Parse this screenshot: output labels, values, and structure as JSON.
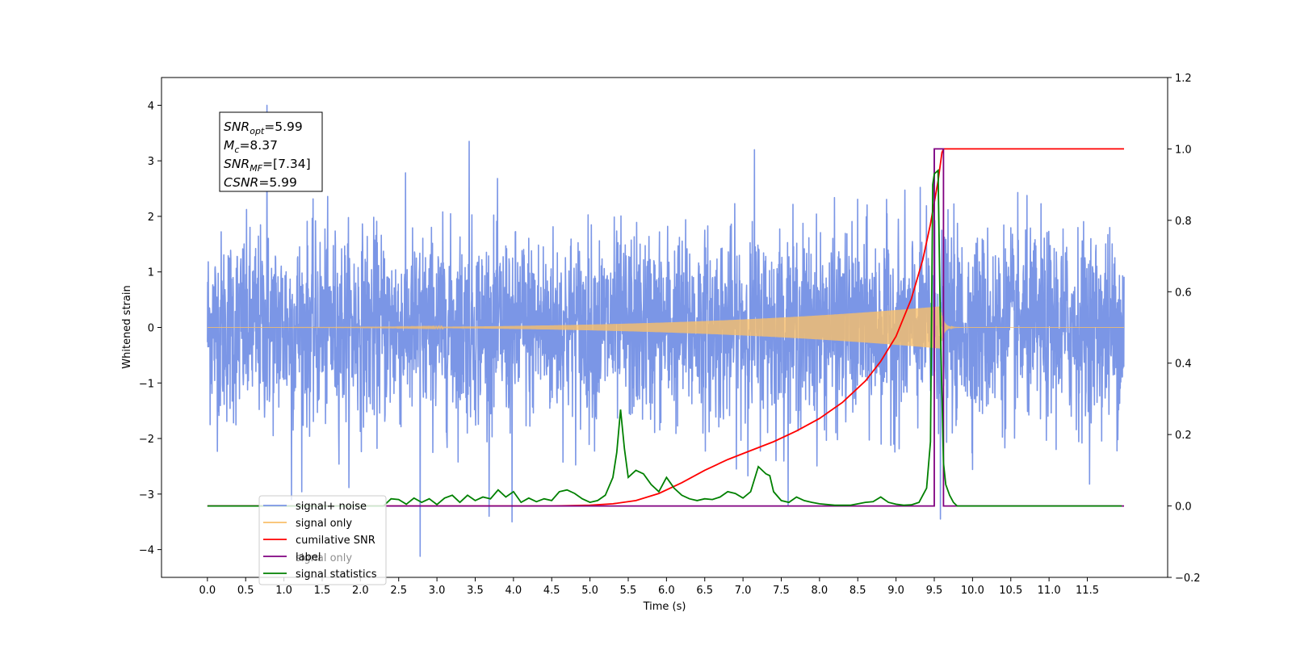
{
  "chart_data": {
    "type": "line",
    "xlabel": "Time (s)",
    "ylabel": "Whitened strain",
    "xlim": [
      -0.6,
      12.55
    ],
    "ylim": [
      -4.5,
      4.5
    ],
    "y2lim": [
      -0.2,
      1.2
    ],
    "x_ticks": [
      "0.0",
      "0.5",
      "1.0",
      "1.5",
      "2.0",
      "2.5",
      "3.0",
      "3.5",
      "4.0",
      "4.5",
      "5.0",
      "5.5",
      "6.0",
      "6.5",
      "7.0",
      "7.5",
      "8.0",
      "8.5",
      "9.0",
      "9.5",
      "10.0",
      "10.5",
      "11.0",
      "11.5"
    ],
    "y_ticks": [
      "4",
      "3",
      "2",
      "1",
      "0",
      "−1",
      "−2",
      "−3",
      "−4"
    ],
    "y2_ticks": [
      "1.2",
      "1.0",
      "0.8",
      "0.6",
      "0.4",
      "0.2",
      "0.0",
      "−0.2"
    ],
    "info_box": [
      {
        "sym": "SNR",
        "sub": "opt",
        "val": "=5.99"
      },
      {
        "sym": "M",
        "sub": "c",
        "val": "=8.37"
      },
      {
        "sym": "SNR",
        "sub": "MF",
        "val": "=[7.34]"
      },
      {
        "sym": "CSNR",
        "sub": "",
        "val": "=5.99"
      }
    ],
    "legend": {
      "placement": "lower-left",
      "entries": [
        {
          "label": "signal+ noise",
          "color": "#7b96e6"
        },
        {
          "label": "signal only",
          "color": "#f9bf6a"
        },
        {
          "label": "cumilative SNR",
          "color": "#ff0000"
        },
        {
          "label": "label",
          "color": "#800080"
        },
        {
          "label": "signal statistics",
          "color": "#008000"
        }
      ],
      "ghost_text": "signal only"
    },
    "noise": {
      "color": "#7b96e6",
      "x_range": [
        0.0,
        11.98
      ],
      "typical_amplitude": 1.4,
      "max": 4.0,
      "min": -4.12
    },
    "signal_only": {
      "color": "#f9bf6a",
      "x_range": [
        0.0,
        11.98
      ],
      "peak_time": 9.58,
      "peak_amplitude": 0.38
    },
    "cumulative_snr": {
      "color": "#ff0000",
      "x": [
        0.0,
        4.5,
        5.0,
        5.3,
        5.6,
        5.9,
        6.2,
        6.5,
        6.8,
        7.1,
        7.4,
        7.7,
        8.0,
        8.3,
        8.6,
        8.8,
        9.0,
        9.2,
        9.35,
        9.45,
        9.55,
        9.6,
        9.62,
        11.98
      ],
      "y": [
        0.0,
        0.0,
        0.002,
        0.006,
        0.015,
        0.035,
        0.065,
        0.1,
        0.13,
        0.155,
        0.18,
        0.21,
        0.245,
        0.29,
        0.35,
        0.405,
        0.475,
        0.58,
        0.69,
        0.79,
        0.91,
        0.99,
        1.0,
        1.0
      ]
    },
    "label_line": {
      "color": "#800080",
      "x": [
        0.0,
        9.5,
        9.5,
        9.62,
        9.62,
        11.98
      ],
      "y": [
        0.0,
        0.0,
        1.0,
        1.0,
        0.0,
        0.0
      ]
    },
    "signal_statistics": {
      "color": "#008000",
      "x": [
        0.0,
        2.3,
        2.4,
        2.5,
        2.6,
        2.7,
        2.8,
        2.9,
        3.0,
        3.1,
        3.2,
        3.3,
        3.4,
        3.5,
        3.6,
        3.7,
        3.8,
        3.9,
        4.0,
        4.1,
        4.2,
        4.3,
        4.4,
        4.5,
        4.6,
        4.7,
        4.8,
        4.9,
        5.0,
        5.1,
        5.2,
        5.3,
        5.35,
        5.4,
        5.45,
        5.5,
        5.55,
        5.6,
        5.7,
        5.8,
        5.9,
        6.0,
        6.05,
        6.1,
        6.2,
        6.3,
        6.4,
        6.5,
        6.6,
        6.7,
        6.8,
        6.9,
        7.0,
        7.1,
        7.2,
        7.3,
        7.35,
        7.4,
        7.5,
        7.6,
        7.7,
        7.8,
        7.9,
        8.0,
        8.2,
        8.4,
        8.6,
        8.7,
        8.8,
        8.9,
        9.0,
        9.1,
        9.2,
        9.3,
        9.4,
        9.45,
        9.48,
        9.5,
        9.55,
        9.58,
        9.62,
        9.65,
        9.7,
        9.75,
        9.8,
        9.85,
        11.95
      ],
      "y": [
        0.0,
        0.0,
        0.02,
        0.018,
        0.005,
        0.022,
        0.01,
        0.02,
        0.004,
        0.022,
        0.03,
        0.01,
        0.03,
        0.015,
        0.025,
        0.02,
        0.045,
        0.025,
        0.04,
        0.01,
        0.022,
        0.012,
        0.02,
        0.015,
        0.04,
        0.045,
        0.035,
        0.02,
        0.01,
        0.015,
        0.03,
        0.08,
        0.15,
        0.27,
        0.16,
        0.08,
        0.09,
        0.1,
        0.09,
        0.06,
        0.04,
        0.08,
        0.065,
        0.05,
        0.03,
        0.02,
        0.015,
        0.02,
        0.018,
        0.025,
        0.04,
        0.035,
        0.022,
        0.04,
        0.11,
        0.09,
        0.085,
        0.04,
        0.015,
        0.01,
        0.025,
        0.015,
        0.01,
        0.006,
        0.002,
        0.002,
        0.01,
        0.012,
        0.025,
        0.01,
        0.005,
        0.002,
        0.003,
        0.01,
        0.05,
        0.18,
        0.9,
        0.93,
        0.94,
        0.5,
        0.12,
        0.06,
        0.03,
        0.01,
        0.0,
        0.0,
        0.0
      ]
    },
    "grid": false
  }
}
